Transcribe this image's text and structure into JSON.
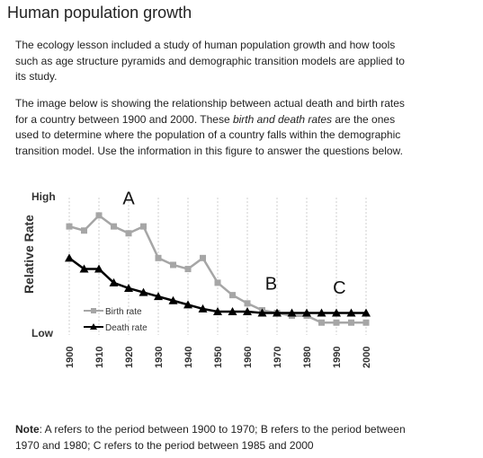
{
  "page": {
    "title": "Human population growth",
    "para1": "The ecology lesson included a study of human population growth and how tools such as age structure pyramids and demographic transition models are applied to its study.",
    "para2_a": "The image below is showing the relationship between actual death and birth rates for a country  between 1900 and 2000. These ",
    "para2_em": "birth and death rates",
    "para2_b": " are the ones used to determine where the population of a country falls within the demographic transition model. Use the information in this figure to answer the questions below.",
    "note_label": "Note",
    "note_text": ": A refers to the period between 1900 to 1970; B refers to the period between 1970 and 1980; C refers to the period between 1985 and 2000"
  },
  "chart_data": {
    "type": "line",
    "title": "",
    "xlabel": "",
    "ylabel": "Relative Rate",
    "y_tick_high": "High",
    "y_tick_low": "Low",
    "xlim": [
      1900,
      2000
    ],
    "ylim": [
      0,
      10
    ],
    "x_ticks": [
      "1900",
      "1910",
      "1920",
      "1930",
      "1940",
      "1950",
      "1960",
      "1970",
      "1980",
      "1990",
      "2000"
    ],
    "annotations": [
      {
        "text": "A",
        "x": 1920,
        "y": 9.5
      },
      {
        "text": "B",
        "x": 1968,
        "y": 3.3
      },
      {
        "text": "C",
        "x": 1991,
        "y": 3.0
      }
    ],
    "legend": "inside-lower-left",
    "series": [
      {
        "name": "Birth rate",
        "color": "#a6a6a6",
        "marker": "square",
        "x": [
          1900,
          1905,
          1910,
          1915,
          1920,
          1925,
          1930,
          1935,
          1940,
          1945,
          1950,
          1955,
          1960,
          1965,
          1970,
          1975,
          1980,
          1985,
          1990,
          1995,
          2000
        ],
        "y": [
          7.9,
          7.6,
          8.7,
          7.9,
          7.4,
          7.9,
          5.6,
          5.1,
          4.8,
          5.6,
          3.8,
          2.9,
          2.3,
          1.8,
          1.6,
          1.4,
          1.4,
          0.9,
          0.9,
          0.9,
          0.9
        ]
      },
      {
        "name": "Death rate",
        "color": "#000000",
        "marker": "triangle",
        "x": [
          1900,
          1905,
          1910,
          1915,
          1920,
          1925,
          1930,
          1935,
          1940,
          1945,
          1950,
          1955,
          1960,
          1965,
          1970,
          1975,
          1980,
          1985,
          1990,
          1995,
          2000
        ],
        "y": [
          5.6,
          4.8,
          4.8,
          3.8,
          3.4,
          3.1,
          2.8,
          2.5,
          2.2,
          1.9,
          1.7,
          1.7,
          1.7,
          1.6,
          1.6,
          1.6,
          1.6,
          1.6,
          1.6,
          1.6,
          1.6
        ]
      }
    ]
  }
}
